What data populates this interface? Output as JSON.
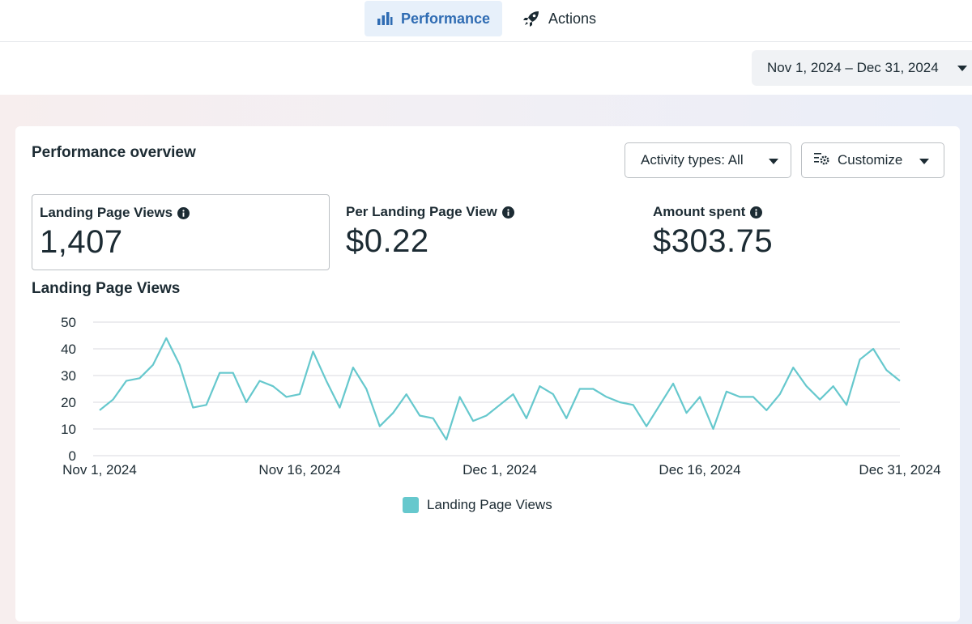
{
  "tabs": [
    {
      "label": "Performance",
      "icon": "bar-chart-icon",
      "active": true
    },
    {
      "label": "Actions",
      "icon": "rocket-icon",
      "active": false
    }
  ],
  "date_range": {
    "label": "Nov 1, 2024 – Dec 31, 2024"
  },
  "card": {
    "title": "Performance overview",
    "activity_button": "Activity types: All",
    "customize_button": "Customize"
  },
  "metrics": [
    {
      "label": "Landing Page Views",
      "value": "1,407",
      "selected": true
    },
    {
      "label": "Per Landing Page View",
      "value": "$0.22",
      "selected": false
    },
    {
      "label": "Amount spent",
      "value": "$303.75",
      "selected": false
    }
  ],
  "colors": {
    "accent": "#2f6cb3",
    "series": "#66c8cd",
    "grid": "#d8dadf"
  },
  "chart_data": {
    "type": "line",
    "title": "Landing Page Views",
    "xlabel": "",
    "ylabel": "",
    "ylim": [
      0,
      50
    ],
    "yticks": [
      "0",
      "10",
      "20",
      "30",
      "40",
      "50"
    ],
    "xtick_labels": [
      "Nov 1, 2024",
      "Nov 16, 2024",
      "Dec 1, 2024",
      "Dec 16, 2024",
      "Dec 31, 2024"
    ],
    "grid": true,
    "legend": "bottom",
    "series": [
      {
        "name": "Landing Page Views",
        "values": [
          17,
          21,
          28,
          29,
          34,
          44,
          34,
          18,
          19,
          31,
          31,
          20,
          28,
          26,
          22,
          23,
          39,
          28,
          18,
          33,
          25,
          11,
          16,
          23,
          15,
          14,
          6,
          22,
          13,
          15,
          19,
          23,
          14,
          26,
          23,
          14,
          25,
          25,
          22,
          20,
          19,
          11,
          19,
          27,
          16,
          22,
          10,
          24,
          22,
          22,
          17,
          23,
          33,
          26,
          21,
          26,
          19,
          36,
          40,
          32,
          28
        ]
      }
    ]
  }
}
